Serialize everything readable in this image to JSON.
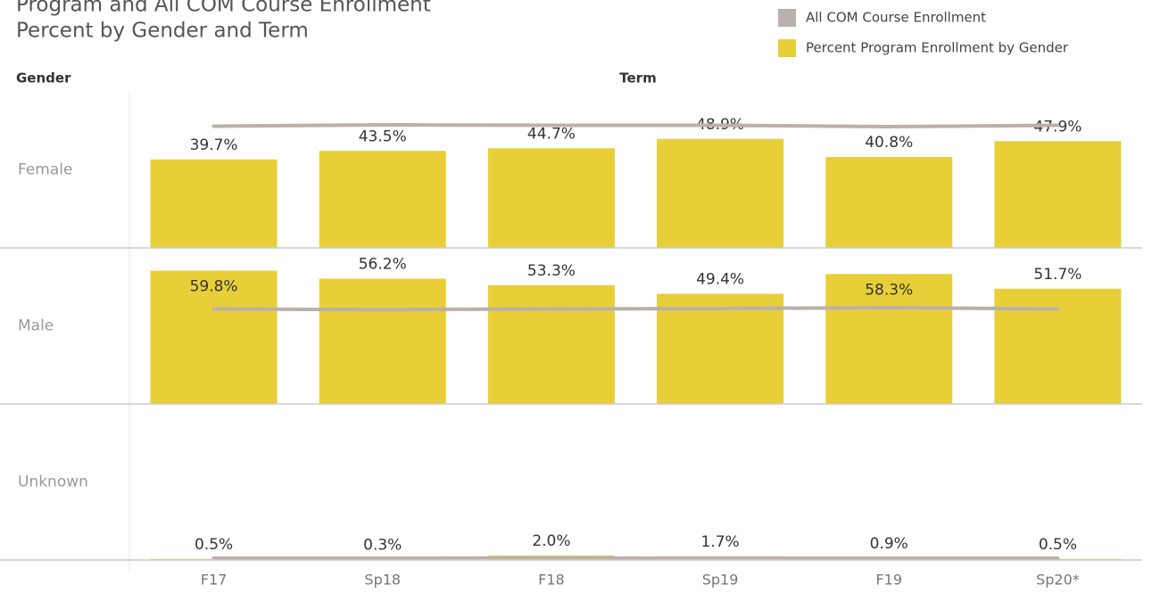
{
  "chart_data": {
    "type": "bar",
    "title": "Program and All COM Course Enrollment",
    "subtitle": "Percent by Gender and Term",
    "row_label": "Gender",
    "column_label": "Term",
    "categories": [
      "F17",
      "Sp18",
      "F18",
      "Sp19",
      "F19",
      "Sp20*"
    ],
    "ylim": [
      0,
      70
    ],
    "series": [
      {
        "name": "All COM Course Enrollment",
        "color": "#bab0ac",
        "type": "line"
      },
      {
        "name": "Percent Program Enrollment by Gender",
        "color": "#e8cf38",
        "type": "bar"
      }
    ],
    "panels": [
      {
        "name": "Female",
        "bar_values": [
          39.7,
          43.5,
          44.7,
          48.9,
          40.8,
          47.9
        ],
        "value_labels": [
          "39.7%",
          "43.5%",
          "44.7%",
          "48.9%",
          "40.8%",
          "47.9%"
        ],
        "line_values": [
          54.6,
          55.2,
          55.0,
          55.0,
          54.4,
          55.0
        ]
      },
      {
        "name": "Male",
        "bar_values": [
          59.8,
          56.2,
          53.3,
          49.4,
          58.3,
          51.7
        ],
        "value_labels": [
          "59.8%",
          "56.2%",
          "53.3%",
          "49.4%",
          "58.3%",
          "51.7%"
        ],
        "line_values": [
          42.6,
          42.3,
          42.6,
          42.8,
          43.2,
          42.6
        ]
      },
      {
        "name": "Unknown",
        "bar_values": [
          0.5,
          0.3,
          2.0,
          1.7,
          0.9,
          0.5
        ],
        "value_labels": [
          "0.5%",
          "0.3%",
          "2.0%",
          "1.7%",
          "0.9%",
          "0.5%"
        ],
        "line_values": [
          0.8,
          0.8,
          0.9,
          0.8,
          0.8,
          0.8
        ]
      }
    ]
  }
}
